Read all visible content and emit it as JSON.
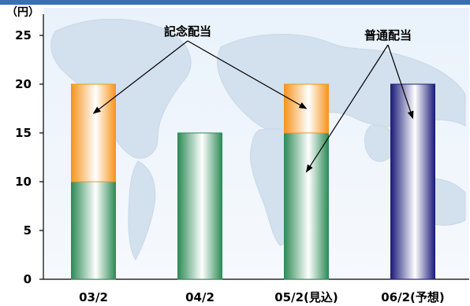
{
  "chart_data": {
    "type": "bar",
    "stacked": true,
    "unit_label": "（円）",
    "categories": [
      "03/2",
      "04/2",
      "05/2(見込)",
      "06/2(予想)"
    ],
    "series": [
      {
        "name": "普通配当",
        "values": [
          10,
          15,
          15,
          20
        ],
        "colors": [
          "#2e8b57",
          "#2e8b57",
          "#2e8b57",
          "#1c1c7a"
        ]
      },
      {
        "name": "記念配当",
        "values": [
          10,
          0,
          5,
          0
        ],
        "colors": [
          "#f7941d",
          "#f7941d",
          "#f7941d",
          "#f7941d"
        ]
      }
    ],
    "ylim": [
      0,
      25
    ],
    "yticks": [
      0,
      5,
      10,
      15,
      20,
      25
    ],
    "grid": false,
    "annotations": [
      {
        "text": "記念配当",
        "targets": [
          {
            "category": 0,
            "value": 17
          },
          {
            "category": 2,
            "value": 17.5
          }
        ]
      },
      {
        "text": "普通配当",
        "targets": [
          {
            "category": 2,
            "value": 11
          },
          {
            "category": 3,
            "value": 16.5
          }
        ]
      }
    ],
    "background": "world-map"
  }
}
